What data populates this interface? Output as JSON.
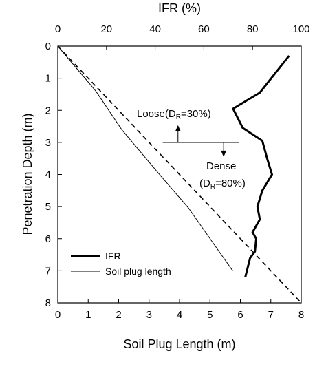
{
  "chart_data": {
    "type": "line",
    "xlabel": "Soil Plug Length (m)",
    "x2label": "IFR (%)",
    "ylabel": "Penetration Depth (m)",
    "xlim": [
      0,
      8
    ],
    "x2lim": [
      0,
      100
    ],
    "ylim": [
      0,
      8
    ],
    "y_inverted": true,
    "x_ticks": [
      "0",
      "1",
      "2",
      "3",
      "4",
      "5",
      "6",
      "7",
      "8"
    ],
    "x2_ticks": [
      "0",
      "20",
      "40",
      "60",
      "80",
      "100"
    ],
    "y_ticks": [
      "0",
      "1",
      "2",
      "3",
      "4",
      "5",
      "6",
      "7",
      "8"
    ],
    "grid": false,
    "legend_position": "bottom-left",
    "series": [
      {
        "name": "IFR",
        "axis": "top",
        "style": "thick-solid",
        "points": [
          {
            "ifr": 95,
            "depth": 0.3
          },
          {
            "ifr": 83,
            "depth": 1.45
          },
          {
            "ifr": 72,
            "depth": 1.95
          },
          {
            "ifr": 76,
            "depth": 2.55
          },
          {
            "ifr": 84,
            "depth": 2.95
          },
          {
            "ifr": 86,
            "depth": 3.5
          },
          {
            "ifr": 88,
            "depth": 4.0
          },
          {
            "ifr": 84,
            "depth": 4.5
          },
          {
            "ifr": 82,
            "depth": 5.0
          },
          {
            "ifr": 83,
            "depth": 5.4
          },
          {
            "ifr": 80,
            "depth": 5.8
          },
          {
            "ifr": 81.5,
            "depth": 6.0
          },
          {
            "ifr": 81,
            "depth": 6.4
          },
          {
            "ifr": 79,
            "depth": 6.6
          },
          {
            "ifr": 77,
            "depth": 7.2
          }
        ]
      },
      {
        "name": "Soil plug length",
        "axis": "bottom",
        "style": "thin-solid",
        "points": [
          {
            "length": 0,
            "depth": 0
          },
          {
            "length": 1.25,
            "depth": 1.4
          },
          {
            "length": 2.1,
            "depth": 2.6
          },
          {
            "length": 3.3,
            "depth": 3.95
          },
          {
            "length": 4.3,
            "depth": 5.05
          },
          {
            "length": 5.3,
            "depth": 6.4
          },
          {
            "length": 5.75,
            "depth": 7.0
          }
        ]
      },
      {
        "name": "",
        "axis": "bottom",
        "style": "dashed",
        "points": [
          {
            "length": 0,
            "depth": 0
          },
          {
            "length": 8,
            "depth": 8
          }
        ]
      }
    ],
    "annotations": {
      "boundary_depth": 3.0,
      "boundary_x_from": 3.45,
      "boundary_x_to": 5.95,
      "arrow_x": 3.95,
      "arrow_down_x": 5.45,
      "loose_main": "Loose(D",
      "loose_sub": "R",
      "loose_end": "=30%)",
      "dense_line1": "Dense",
      "dense_main": "(D",
      "dense_sub": "R",
      "dense_end": "=80%)"
    }
  }
}
